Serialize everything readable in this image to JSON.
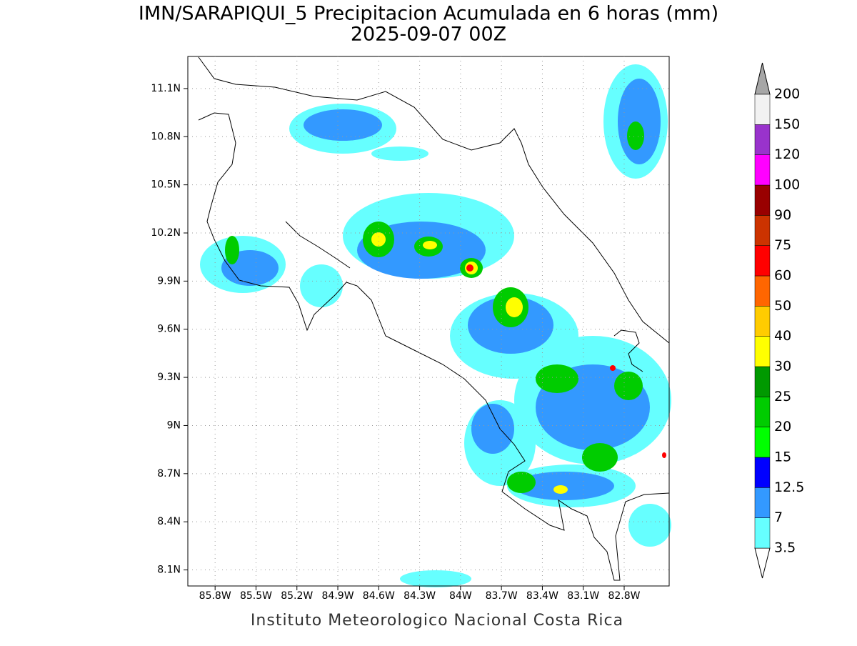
{
  "title": "IMN/SARAPIQUI_5 Precipitacion Acumulada en 6 horas (mm)",
  "subtitle": "2025-09-07 00Z",
  "map": {
    "xlim": [
      -86.0,
      -82.47
    ],
    "ylim": [
      8.0,
      11.3
    ],
    "xticks": [
      {
        "value": -85.8,
        "label": "85.8W"
      },
      {
        "value": -85.5,
        "label": "85.5W"
      },
      {
        "value": -85.2,
        "label": "85.2W"
      },
      {
        "value": -84.9,
        "label": "84.9W"
      },
      {
        "value": -84.6,
        "label": "84.6W"
      },
      {
        "value": -84.3,
        "label": "84.3W"
      },
      {
        "value": -84,
        "label": "84W"
      },
      {
        "value": -83.7,
        "label": "83.7W"
      },
      {
        "value": -83.4,
        "label": "83.4W"
      },
      {
        "value": -83.1,
        "label": "83.1W"
      },
      {
        "value": -82.8,
        "label": "82.8W"
      }
    ],
    "yticks": [
      {
        "value": 11.1,
        "label": "11.1N"
      },
      {
        "value": 10.8,
        "label": "10.8N"
      },
      {
        "value": 10.5,
        "label": "10.5N"
      },
      {
        "value": 10.2,
        "label": "10.2N"
      },
      {
        "value": 9.9,
        "label": "9.9N"
      },
      {
        "value": 9.6,
        "label": "9.6N"
      },
      {
        "value": 9.3,
        "label": "9.3N"
      },
      {
        "value": 9,
        "label": "9N"
      },
      {
        "value": 8.7,
        "label": "8.7N"
      },
      {
        "value": 8.4,
        "label": "8.4N"
      },
      {
        "value": 8.1,
        "label": "8.1N"
      }
    ],
    "grid": true
  },
  "colorbar": {
    "levels": [
      3.5,
      7,
      12.5,
      15,
      20,
      25,
      30,
      40,
      50,
      60,
      75,
      90,
      100,
      120,
      150,
      200
    ],
    "colors": [
      "#66ffff",
      "#3399ff",
      "#0000ff",
      "#00ff00",
      "#00cc00",
      "#009900",
      "#ffff00",
      "#ffcc00",
      "#ff6600",
      "#ff0000",
      "#cc3300",
      "#990000",
      "#ff00ff",
      "#9933cc",
      "#f2f2f2"
    ],
    "under_color": "#ffffff",
    "over_color": "#a6a6a6"
  },
  "footer": "Instituto Meteorologico Nacional Costa Rica"
}
